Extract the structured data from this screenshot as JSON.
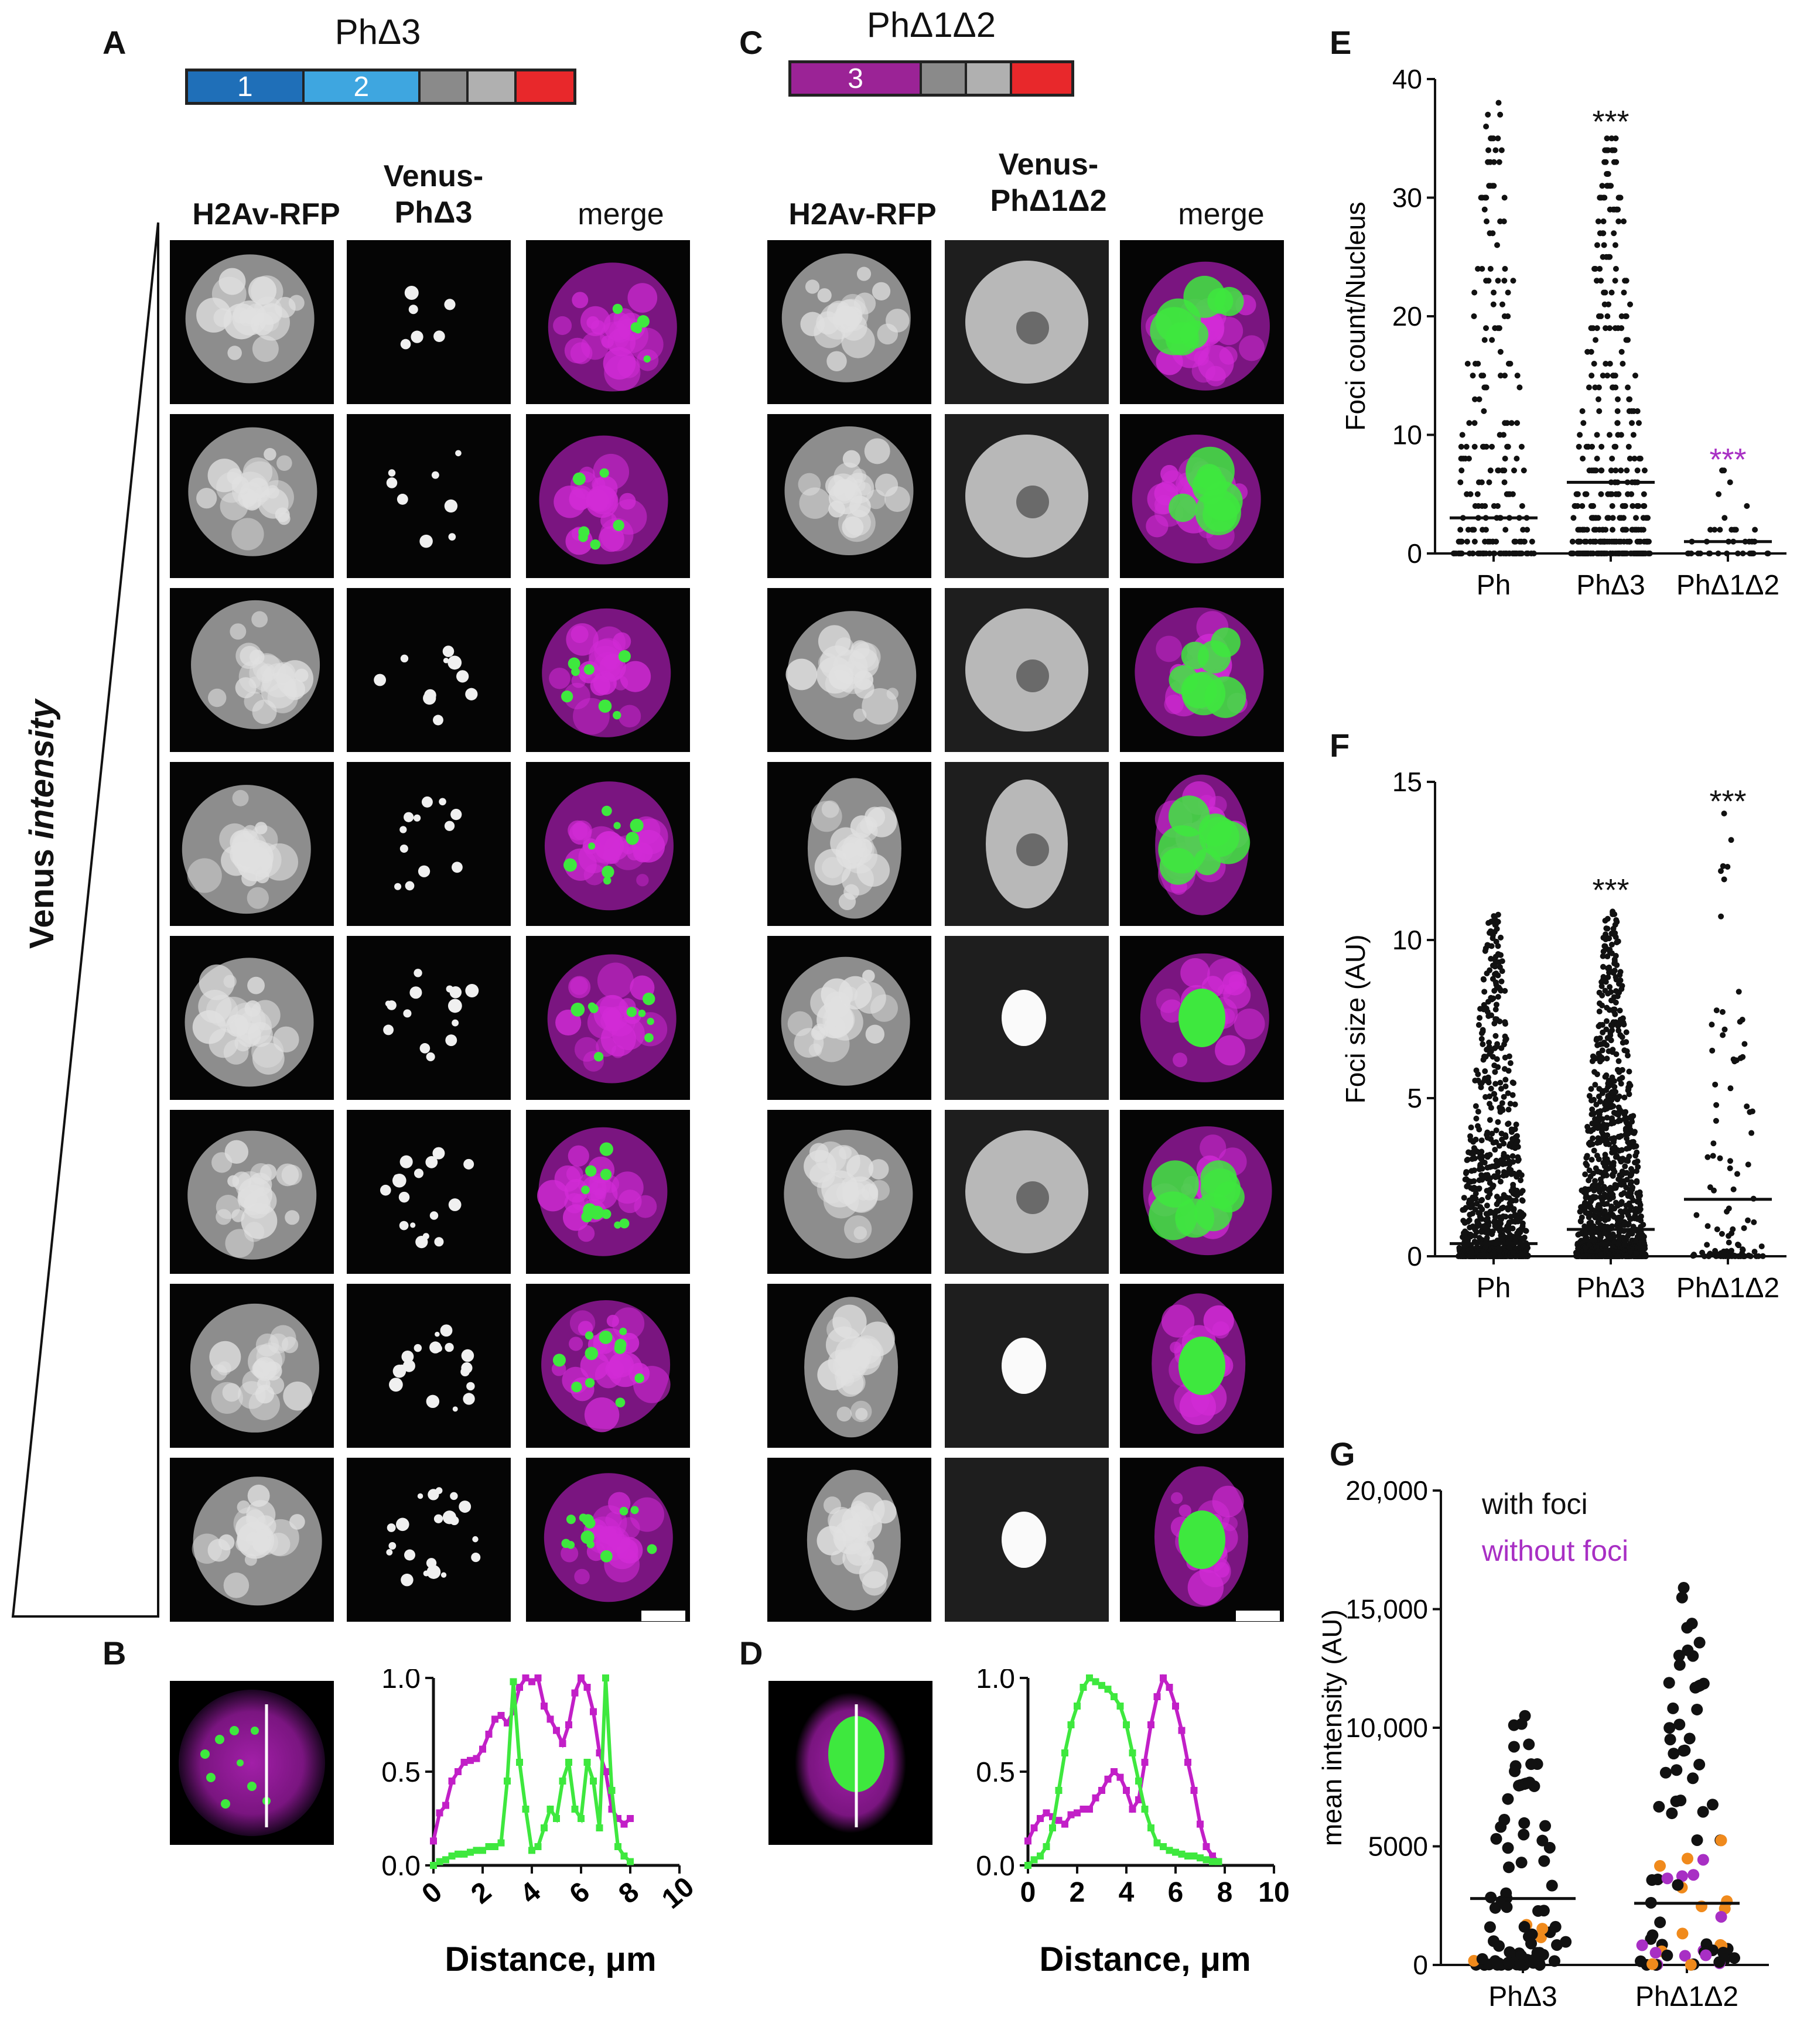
{
  "panels": {
    "A": {
      "letter": "A",
      "title": "PhΔ3",
      "domains": [
        {
          "label": "1",
          "color": "#1f6fb8",
          "flex": 2
        },
        {
          "label": "2",
          "color": "#3ea6e0",
          "flex": 2
        },
        {
          "label": "",
          "color": "#8a8a8a",
          "flex": 0.8
        },
        {
          "label": "",
          "color": "#b0b0b0",
          "flex": 0.8
        },
        {
          "label": "",
          "color": "#e8282b",
          "flex": 1
        }
      ],
      "columns": [
        "H2Av-RFP",
        "Venus-\nPhΔ3",
        "merge"
      ]
    },
    "B": {
      "letter": "B"
    },
    "C": {
      "letter": "C",
      "title": "PhΔ1Δ2",
      "domains": [
        {
          "label": "3",
          "color": "#9b2396",
          "flex": 2.4
        },
        {
          "label": "",
          "color": "#8a8a8a",
          "flex": 0.8
        },
        {
          "label": "",
          "color": "#b0b0b0",
          "flex": 0.8
        },
        {
          "label": "",
          "color": "#e8282b",
          "flex": 1.1
        }
      ],
      "columns": [
        "H2Av-RFP",
        "Venus-\nPhΔ1Δ2",
        "merge"
      ]
    },
    "D": {
      "letter": "D"
    },
    "E": {
      "letter": "E"
    },
    "F": {
      "letter": "F"
    },
    "G": {
      "letter": "G"
    }
  },
  "venus_axis_label": {
    "prefix": "Venus ",
    "italic": "intensity"
  },
  "colors": {
    "magenta": "#c21fc7",
    "green": "#3ee83e",
    "purple_text": "#a82fc4",
    "orange": "#f08a1c",
    "black": "#111111"
  },
  "chart_data": [
    {
      "id": "B",
      "type": "line",
      "xlabel": "Distance, μm",
      "ylabel": "",
      "xlim": [
        0,
        10
      ],
      "ylim": [
        0,
        1.0
      ],
      "xticks": [
        "0",
        "2",
        "4",
        "6",
        "8",
        "10"
      ],
      "yticks": [
        "0.0",
        "0.5",
        "1.0"
      ],
      "series": [
        {
          "color": "#c21fc7",
          "x": [
            0,
            0.25,
            0.5,
            0.75,
            1.0,
            1.25,
            1.5,
            1.75,
            2.0,
            2.25,
            2.5,
            2.75,
            3.0,
            3.25,
            3.5,
            3.75,
            4.0,
            4.25,
            4.5,
            4.75,
            5.0,
            5.25,
            5.5,
            5.75,
            6.0,
            6.25,
            6.5,
            6.75,
            7.0,
            7.25,
            7.5,
            7.75,
            8.0
          ],
          "y": [
            0.13,
            0.28,
            0.32,
            0.45,
            0.5,
            0.55,
            0.56,
            0.57,
            0.62,
            0.7,
            0.78,
            0.8,
            0.76,
            0.82,
            0.95,
            1.0,
            0.98,
            1.0,
            0.85,
            0.78,
            0.72,
            0.65,
            0.75,
            0.92,
            1.0,
            0.95,
            0.82,
            0.6,
            0.5,
            0.3,
            0.25,
            0.22,
            0.25
          ]
        },
        {
          "color": "#3ee83e",
          "x": [
            0,
            0.25,
            0.5,
            0.75,
            1.0,
            1.25,
            1.5,
            1.75,
            2.0,
            2.25,
            2.5,
            2.75,
            3.0,
            3.25,
            3.5,
            3.75,
            4.0,
            4.25,
            4.5,
            4.75,
            5.0,
            5.25,
            5.5,
            5.75,
            6.0,
            6.25,
            6.5,
            6.75,
            7.0,
            7.25,
            7.5,
            7.75,
            8.0
          ],
          "y": [
            0.0,
            0.02,
            0.03,
            0.05,
            0.06,
            0.06,
            0.07,
            0.08,
            0.08,
            0.1,
            0.1,
            0.12,
            0.45,
            0.98,
            0.55,
            0.3,
            0.08,
            0.1,
            0.2,
            0.3,
            0.25,
            0.45,
            0.55,
            0.3,
            0.25,
            0.55,
            0.45,
            0.2,
            1.0,
            0.4,
            0.1,
            0.05,
            0.02
          ]
        }
      ]
    },
    {
      "id": "D",
      "type": "line",
      "xlabel": "Distance, μm",
      "ylabel": "",
      "xlim": [
        0,
        10
      ],
      "ylim": [
        0,
        1.0
      ],
      "xticks": [
        "0",
        "2",
        "4",
        "6",
        "8",
        "10"
      ],
      "yticks": [
        "0.0",
        "0.5",
        "1.0"
      ],
      "series": [
        {
          "color": "#c21fc7",
          "x": [
            0,
            0.25,
            0.5,
            0.75,
            1.0,
            1.25,
            1.5,
            1.75,
            2.0,
            2.25,
            2.5,
            2.75,
            3.0,
            3.25,
            3.5,
            3.75,
            4.0,
            4.25,
            4.5,
            4.75,
            5.0,
            5.25,
            5.5,
            5.75,
            6.0,
            6.25,
            6.5,
            6.75,
            7.0,
            7.25,
            7.5,
            7.75
          ],
          "y": [
            0.13,
            0.2,
            0.25,
            0.28,
            0.26,
            0.24,
            0.22,
            0.27,
            0.28,
            0.3,
            0.3,
            0.36,
            0.4,
            0.46,
            0.5,
            0.47,
            0.4,
            0.3,
            0.35,
            0.55,
            0.75,
            0.9,
            1.0,
            0.95,
            0.85,
            0.72,
            0.55,
            0.4,
            0.22,
            0.1,
            0.05,
            0.02
          ]
        },
        {
          "color": "#3ee83e",
          "x": [
            0,
            0.25,
            0.5,
            0.75,
            1.0,
            1.25,
            1.5,
            1.75,
            2.0,
            2.25,
            2.5,
            2.75,
            3.0,
            3.25,
            3.5,
            3.75,
            4.0,
            4.25,
            4.5,
            4.75,
            5.0,
            5.25,
            5.5,
            5.75,
            6.0,
            6.25,
            6.5,
            6.75,
            7.0,
            7.25,
            7.5,
            7.75
          ],
          "y": [
            0.0,
            0.03,
            0.05,
            0.1,
            0.2,
            0.4,
            0.6,
            0.75,
            0.85,
            0.95,
            1.0,
            0.98,
            0.96,
            0.94,
            0.9,
            0.85,
            0.75,
            0.6,
            0.45,
            0.3,
            0.2,
            0.12,
            0.1,
            0.08,
            0.07,
            0.06,
            0.05,
            0.05,
            0.04,
            0.03,
            0.02,
            0.02
          ]
        }
      ]
    },
    {
      "id": "E",
      "type": "scatter",
      "ylabel": "Foci count/Nucleus",
      "ylim": [
        0,
        40
      ],
      "yticks": [
        "0",
        "10",
        "20",
        "30",
        "40"
      ],
      "categories": [
        "Ph",
        "PhΔ3",
        "PhΔ1Δ2"
      ],
      "medians": [
        3,
        6,
        1
      ],
      "max_values": [
        38,
        35,
        7
      ],
      "significance": [
        {
          "category": "PhΔ3",
          "label": "***",
          "y": 37,
          "color": "#111111"
        },
        {
          "category": "PhΔ1Δ2",
          "label": "***",
          "y": 8.5,
          "color": "#a82fc4"
        }
      ]
    },
    {
      "id": "F",
      "type": "scatter",
      "ylabel": "Foci size (AU)",
      "ylim": [
        0,
        15
      ],
      "yticks": [
        "0",
        "5",
        "10",
        "15"
      ],
      "categories": [
        "Ph",
        "PhΔ3",
        "PhΔ1Δ2"
      ],
      "medians": [
        0.4,
        0.85,
        1.8
      ],
      "max_values": [
        10.8,
        10.9,
        14
      ],
      "significance": [
        {
          "category": "PhΔ3",
          "label": "***",
          "y": 11.8,
          "color": "#111111"
        },
        {
          "category": "PhΔ1Δ2",
          "label": "***",
          "y": 14.6,
          "color": "#111111"
        }
      ]
    },
    {
      "id": "G",
      "type": "scatter",
      "ylabel": "mean intensity (AU)",
      "ylim": [
        0,
        20000
      ],
      "yticks": [
        "0",
        "5000",
        "10,000",
        "15,000",
        "20,000"
      ],
      "categories": [
        "PhΔ3",
        "PhΔ1Δ2"
      ],
      "medians": [
        2800,
        2600
      ],
      "legend": [
        {
          "label": "with foci",
          "color": "#111111"
        },
        {
          "label": "without foci",
          "color": "#a82fc4"
        }
      ],
      "max_values": [
        10500,
        15900
      ]
    }
  ]
}
